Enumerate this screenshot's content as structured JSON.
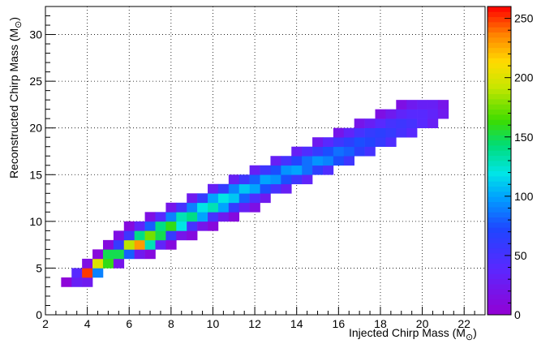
{
  "chart_data": {
    "type": "heatmap",
    "xlabel": "Injected Chirp Mass (M",
    "ylabel": "Reconstructed Chirp Mass (M",
    "unit_symbol": "⊙",
    "xlim": [
      2,
      23
    ],
    "ylim": [
      0,
      33
    ],
    "xticks": [
      2,
      4,
      6,
      8,
      10,
      12,
      14,
      16,
      18,
      20,
      22
    ],
    "yticks": [
      0,
      5,
      10,
      15,
      20,
      25,
      30
    ],
    "zlim": [
      0,
      260
    ],
    "zticks": [
      0,
      50,
      100,
      150,
      200,
      250
    ],
    "grid": true,
    "colorbar": "right",
    "bin_width_x": 0.5,
    "bin_width_y": 1,
    "cells": [
      [
        3,
        3.5,
        5
      ],
      [
        3.5,
        3.5,
        30
      ],
      [
        4,
        3.5,
        25
      ],
      [
        3.5,
        4.5,
        40
      ],
      [
        4,
        4.5,
        250
      ],
      [
        4.5,
        4.5,
        90
      ],
      [
        4,
        5.5,
        15
      ],
      [
        4.5,
        5.5,
        200
      ],
      [
        5,
        5.5,
        160
      ],
      [
        5.5,
        5.5,
        20
      ],
      [
        4.5,
        6.5,
        8
      ],
      [
        5,
        6.5,
        150
      ],
      [
        5.5,
        6.5,
        150
      ],
      [
        6,
        6.5,
        80
      ],
      [
        6.5,
        6.5,
        25
      ],
      [
        7,
        6.5,
        10
      ],
      [
        5,
        7.5,
        10
      ],
      [
        5.5,
        7.5,
        60
      ],
      [
        6,
        7.5,
        190
      ],
      [
        6.5,
        7.5,
        230
      ],
      [
        7,
        7.5,
        130
      ],
      [
        7.5,
        7.5,
        35
      ],
      [
        8,
        7.5,
        10
      ],
      [
        5.5,
        8.5,
        15
      ],
      [
        6,
        8.5,
        55
      ],
      [
        6.5,
        8.5,
        140
      ],
      [
        7,
        8.5,
        175
      ],
      [
        7.5,
        8.5,
        150
      ],
      [
        8,
        8.5,
        60
      ],
      [
        8.5,
        8.5,
        20
      ],
      [
        9,
        8.5,
        10
      ],
      [
        6,
        9.5,
        10
      ],
      [
        6.5,
        9.5,
        35
      ],
      [
        7,
        9.5,
        80
      ],
      [
        7.5,
        9.5,
        140
      ],
      [
        8,
        9.5,
        160
      ],
      [
        8.5,
        9.5,
        120
      ],
      [
        9,
        9.5,
        50
      ],
      [
        9.5,
        9.5,
        20
      ],
      [
        10,
        9.5,
        8
      ],
      [
        7,
        10.5,
        15
      ],
      [
        7.5,
        10.5,
        40
      ],
      [
        8,
        10.5,
        90
      ],
      [
        8.5,
        10.5,
        130
      ],
      [
        9,
        10.5,
        140
      ],
      [
        9.5,
        10.5,
        100
      ],
      [
        10,
        10.5,
        50
      ],
      [
        10.5,
        10.5,
        25
      ],
      [
        11,
        10.5,
        10
      ],
      [
        8,
        11.5,
        20
      ],
      [
        8.5,
        11.5,
        50
      ],
      [
        9,
        11.5,
        90
      ],
      [
        9.5,
        11.5,
        120
      ],
      [
        10,
        11.5,
        130
      ],
      [
        10.5,
        11.5,
        100
      ],
      [
        11,
        11.5,
        60
      ],
      [
        11.5,
        11.5,
        30
      ],
      [
        12,
        11.5,
        15
      ],
      [
        9,
        12.5,
        25
      ],
      [
        9.5,
        12.5,
        60
      ],
      [
        10,
        12.5,
        100
      ],
      [
        10.5,
        12.5,
        120
      ],
      [
        11,
        12.5,
        110
      ],
      [
        11.5,
        12.5,
        80
      ],
      [
        12,
        12.5,
        45
      ],
      [
        12.5,
        12.5,
        25
      ],
      [
        10,
        13.5,
        30
      ],
      [
        10.5,
        13.5,
        60
      ],
      [
        11,
        13.5,
        90
      ],
      [
        11.5,
        13.5,
        110
      ],
      [
        12,
        13.5,
        100
      ],
      [
        12.5,
        13.5,
        75
      ],
      [
        13,
        13.5,
        50
      ],
      [
        13.5,
        13.5,
        30
      ],
      [
        11,
        14.5,
        30
      ],
      [
        11.5,
        14.5,
        55
      ],
      [
        12,
        14.5,
        80
      ],
      [
        12.5,
        14.5,
        100
      ],
      [
        13,
        14.5,
        95
      ],
      [
        13.5,
        14.5,
        75
      ],
      [
        14,
        14.5,
        55
      ],
      [
        14.5,
        14.5,
        35
      ],
      [
        12,
        15.5,
        30
      ],
      [
        12.5,
        15.5,
        55
      ],
      [
        13,
        15.5,
        75
      ],
      [
        13.5,
        15.5,
        95
      ],
      [
        14,
        15.5,
        100
      ],
      [
        14.5,
        15.5,
        85
      ],
      [
        15,
        15.5,
        65
      ],
      [
        15.5,
        15.5,
        45
      ],
      [
        13,
        16.5,
        30
      ],
      [
        13.5,
        16.5,
        50
      ],
      [
        14,
        16.5,
        70
      ],
      [
        14.5,
        16.5,
        85
      ],
      [
        15,
        16.5,
        95
      ],
      [
        15.5,
        16.5,
        90
      ],
      [
        16,
        16.5,
        75
      ],
      [
        16.5,
        16.5,
        55
      ],
      [
        14,
        17.5,
        30
      ],
      [
        14.5,
        17.5,
        45
      ],
      [
        15,
        17.5,
        60
      ],
      [
        15.5,
        17.5,
        75
      ],
      [
        16,
        17.5,
        85
      ],
      [
        16.5,
        17.5,
        80
      ],
      [
        17,
        17.5,
        65
      ],
      [
        17.5,
        17.5,
        50
      ],
      [
        15,
        18.5,
        25
      ],
      [
        15.5,
        18.5,
        40
      ],
      [
        16,
        18.5,
        55
      ],
      [
        16.5,
        18.5,
        65
      ],
      [
        17,
        18.5,
        75
      ],
      [
        17.5,
        18.5,
        70
      ],
      [
        18,
        18.5,
        60
      ],
      [
        18.5,
        18.5,
        45
      ],
      [
        16,
        19.5,
        20
      ],
      [
        16.5,
        19.5,
        35
      ],
      [
        17,
        19.5,
        50
      ],
      [
        17.5,
        19.5,
        60
      ],
      [
        18,
        19.5,
        65
      ],
      [
        18.5,
        19.5,
        60
      ],
      [
        19,
        19.5,
        50
      ],
      [
        19.5,
        19.5,
        40
      ],
      [
        17,
        20.5,
        20
      ],
      [
        17.5,
        20.5,
        30
      ],
      [
        18,
        20.5,
        40
      ],
      [
        18.5,
        20.5,
        50
      ],
      [
        19,
        20.5,
        55
      ],
      [
        19.5,
        20.5,
        50
      ],
      [
        20,
        20.5,
        40
      ],
      [
        20.5,
        20.5,
        30
      ],
      [
        18,
        21.5,
        15
      ],
      [
        18.5,
        21.5,
        25
      ],
      [
        19,
        21.5,
        35
      ],
      [
        19.5,
        21.5,
        40
      ],
      [
        20,
        21.5,
        40
      ],
      [
        20.5,
        21.5,
        35
      ],
      [
        21,
        21.5,
        25
      ],
      [
        19,
        22.5,
        15
      ],
      [
        19.5,
        22.5,
        25
      ],
      [
        20,
        22.5,
        30
      ],
      [
        20.5,
        22.5,
        30
      ],
      [
        21,
        22.5,
        20
      ]
    ]
  }
}
